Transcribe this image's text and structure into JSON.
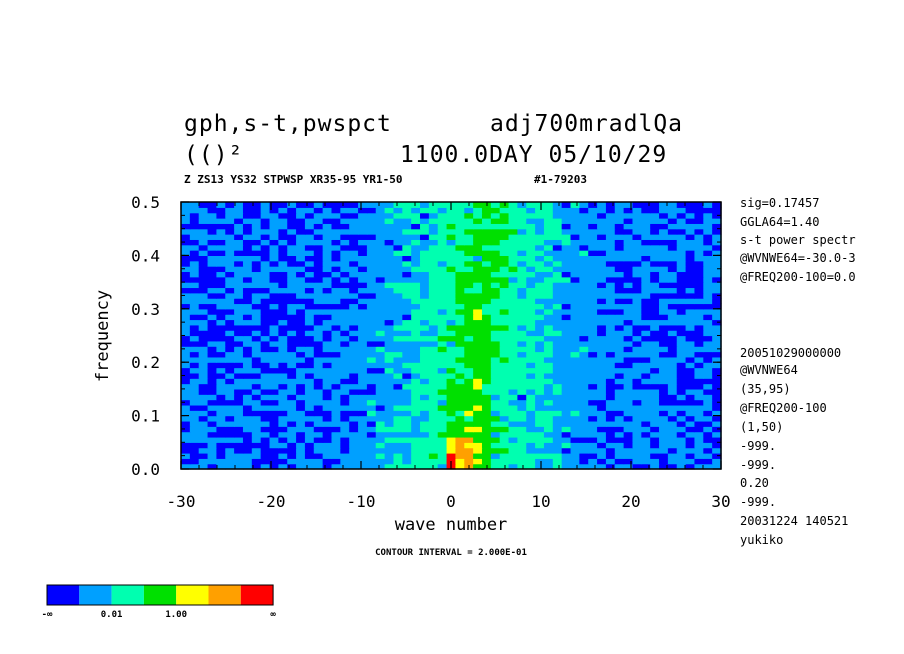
{
  "header": {
    "title_line1_left": "gph,s-t,pwspct",
    "title_line1_right": "adj700mradlQa",
    "title_line2_left": "(()²",
    "title_line2_right": "1100.0DAY 05/10/29",
    "subtitle_left": "Z ZS13 YS32 STPWSP XR35-95 YR1-50",
    "subtitle_right": "#1-79203"
  },
  "chart_data": {
    "type": "heatmap",
    "xlabel": "wave number",
    "ylabel": "frequency",
    "xlim": [
      -30,
      30
    ],
    "ylim": [
      0,
      0.5
    ],
    "x_ticks": [
      -30,
      -20,
      -10,
      0,
      10,
      20,
      30
    ],
    "x_tick_labels": [
      "-30",
      "-20",
      "-10",
      "0",
      "10",
      "20",
      "30"
    ],
    "y_ticks": [
      0,
      0.1,
      0.2,
      0.3,
      0.4,
      0.5
    ],
    "y_tick_labels": [
      "0.0",
      "0.1",
      "0.2",
      "0.3",
      "0.4",
      "0.5"
    ],
    "contour_note": "CONTOUR INTERVAL = 2.000E-01",
    "color_levels": [
      "#0000ff",
      "#00a0ff",
      "#00ffb0",
      "#00e000",
      "#ffff00",
      "#ffa000",
      "#ff0000"
    ],
    "colorbar_labels": [
      "-∞",
      "0.01",
      "1.00",
      "∞"
    ]
  },
  "side_info": [
    "sig=0.17457",
    "GGLA64=1.40",
    "s-t power spectr",
    "@WVNWE64=-30.0-3",
    "@FREQ200-100=0.0",
    "20051029000000",
    "@WVNWE64",
    "(35,95)",
    "@FREQ200-100",
    "(1,50)",
    "-999.",
    "-999.",
    "0.20",
    "-999.",
    "20031224 140521",
    "yukiko"
  ]
}
